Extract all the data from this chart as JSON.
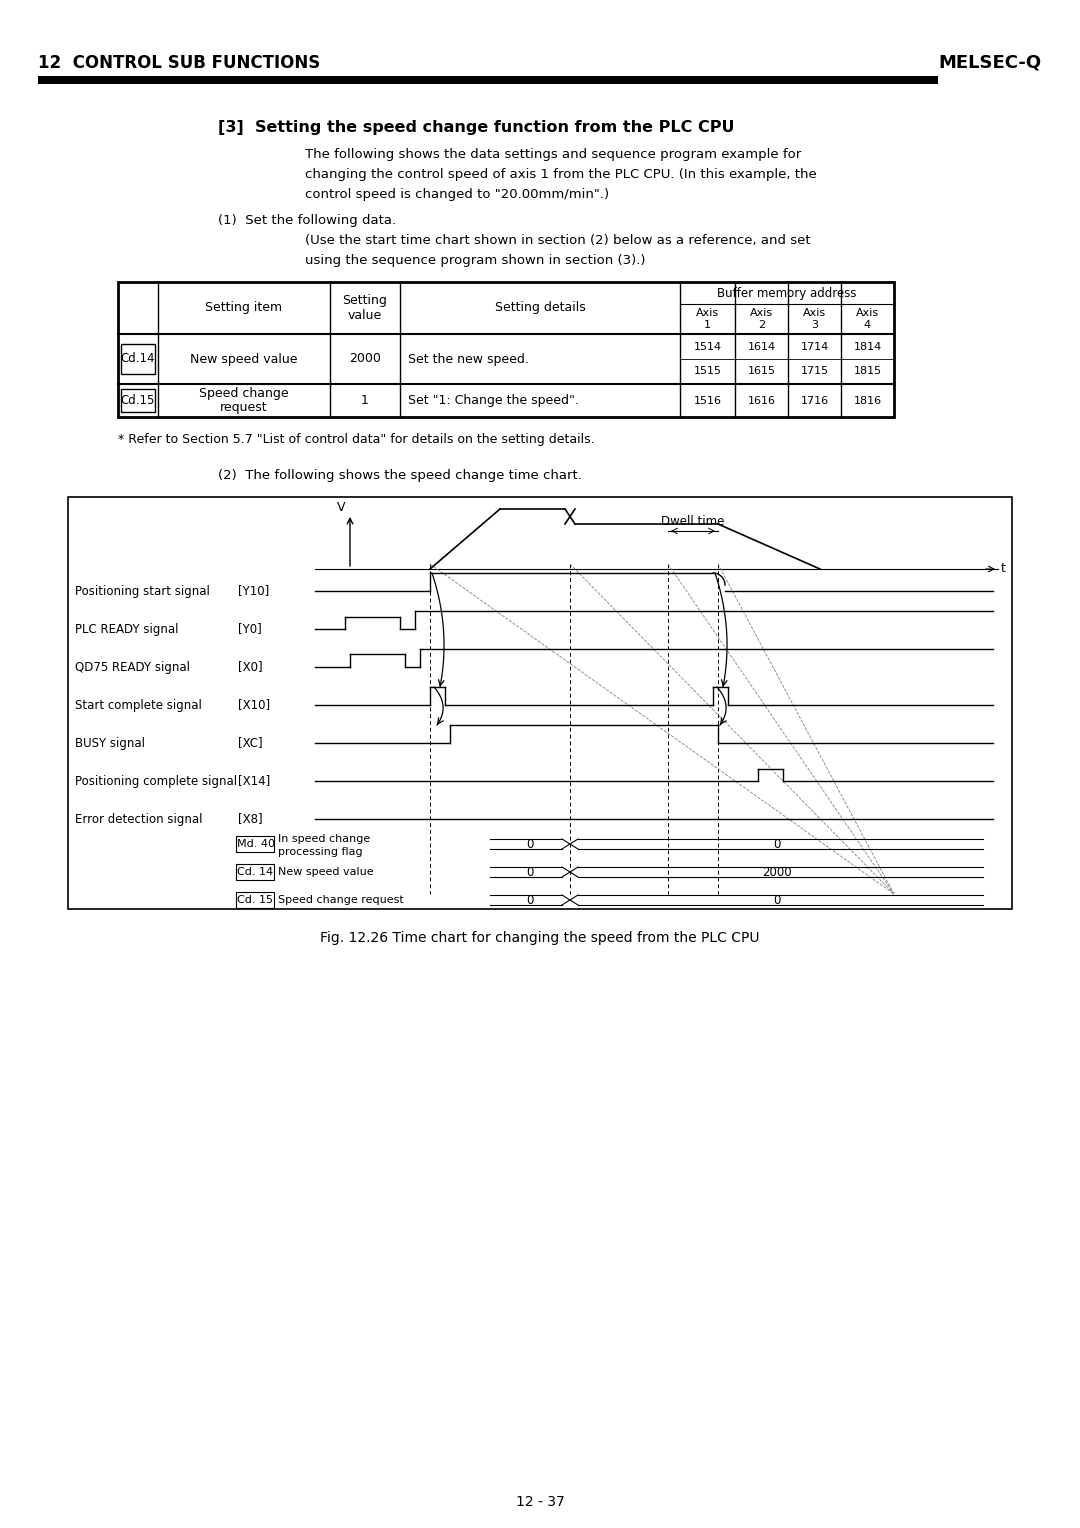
{
  "title_section": "12  CONTROL SUB FUNCTIONS",
  "melsec_q": "MELSEC-Q",
  "heading": "[3]  Setting the speed change function from the PLC CPU",
  "body_text": [
    "The following shows the data settings and sequence program example for",
    "changing the control speed of axis 1 from the PLC CPU. (In this example, the",
    "control speed is changed to \"20.00mm/min\".)"
  ],
  "sub1": "(1)  Set the following data.",
  "sub1b": "(Use the start time chart shown in section (2) below as a reference, and set",
  "sub1c": "using the sequence program shown in section (3).)",
  "footnote": "* Refer to Section 5.7 \"List of control data\" for details on the setting details.",
  "sub2": "(2)  The following shows the speed change time chart.",
  "fig_caption": "Fig. 12.26 Time chart for changing the speed from the PLC CPU",
  "page": "12 - 37",
  "signals": [
    "Positioning start signal",
    "PLC READY signal",
    "QD75 READY signal",
    "Start complete signal",
    "BUSY signal",
    "Positioning complete signal",
    "Error detection signal"
  ],
  "signal_tags": [
    "[Y10]",
    "[Y0]",
    "[X0]",
    "[X10]",
    "[XC]",
    "[X14]",
    "[X8]"
  ],
  "bottom_labels": [
    "Md. 40",
    "Cd. 14",
    "Cd. 15"
  ],
  "bottom_desc": [
    "In speed change\nprocessing flag",
    "New speed value",
    "Speed change request"
  ]
}
